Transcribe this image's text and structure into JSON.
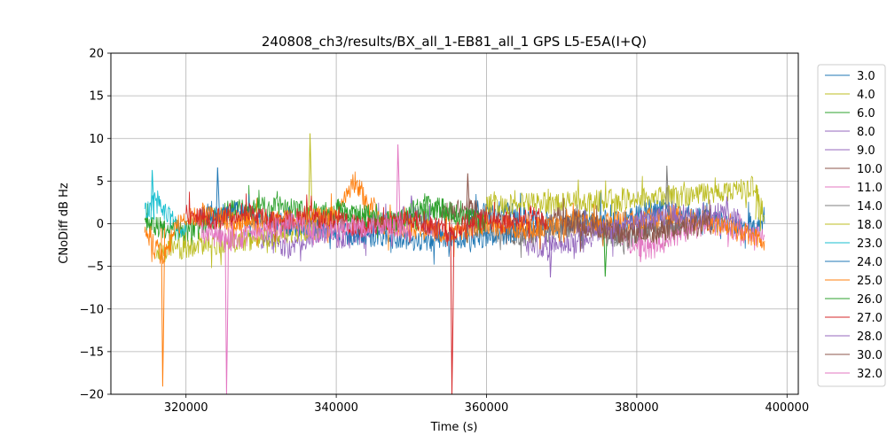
{
  "chart_data": {
    "type": "line",
    "title": "240808_ch3/results/BX_all_1-EB81_all_1 GPS L5-E5A(I+Q)",
    "xlabel": "Time (s)",
    "ylabel": "CNoDiff dB Hz",
    "xlim": [
      310000,
      401500
    ],
    "ylim": [
      -20,
      20
    ],
    "x_ticks": [
      320000,
      340000,
      360000,
      380000,
      400000
    ],
    "x_tick_labels": [
      "320000",
      "340000",
      "360000",
      "380000",
      "400000"
    ],
    "y_ticks": [
      -20,
      -15,
      -10,
      -5,
      0,
      5,
      10,
      15,
      20
    ],
    "y_tick_labels": [
      "−20",
      "−15",
      "−10",
      "−5",
      "0",
      "5",
      "10",
      "15",
      "20"
    ],
    "grid": true,
    "legend_position": "right-outside",
    "series": [
      {
        "name": "3.0",
        "color": "#1f77b4",
        "x": [
          357500,
          362000,
          366000,
          370000,
          374000,
          378000,
          382000,
          386000,
          390000,
          394000,
          397000
        ],
        "y": [
          0.8,
          1.5,
          0.5,
          -0.5,
          1,
          0,
          2,
          1,
          0.5,
          -0.5,
          0
        ],
        "spikes": []
      },
      {
        "name": "4.0",
        "color": "#bcbd22",
        "x": [
          360000,
          366000,
          372000,
          378000,
          384000,
          390000,
          395500,
          397000
        ],
        "y": [
          2.2,
          2.4,
          2.6,
          2.8,
          3.2,
          3.6,
          4.3,
          1
        ],
        "spikes": [
          [
            396000,
            4.5
          ]
        ]
      },
      {
        "name": "6.0",
        "color": "#2ca02c",
        "x": [
          314500,
          320000,
          326000,
          332000,
          338000,
          344000,
          350000,
          354000,
          356000
        ],
        "y": [
          0,
          -1,
          1.5,
          2,
          1,
          0.5,
          0,
          2,
          1
        ],
        "spikes": [
          [
            375800,
            -6.2
          ]
        ]
      },
      {
        "name": "8.0",
        "color": "#9467bd",
        "x": [
          365000,
          368000,
          371000,
          374000
        ],
        "y": [
          -2.5,
          -2.8,
          -2.4,
          -2.2
        ],
        "spikes": [
          [
            368500,
            -6.3
          ]
        ]
      },
      {
        "name": "9.0",
        "color": "#9467bd",
        "x": [
          330000,
          334000,
          338000,
          342000,
          346000,
          350000,
          354000
        ],
        "y": [
          -1.5,
          -3,
          -1,
          -2,
          0,
          1,
          -1
        ],
        "spikes": [
          [
            350000,
            3.3
          ]
        ]
      },
      {
        "name": "10.0",
        "color": "#8c564b",
        "x": [
          354000,
          358000,
          362000,
          366000,
          370000,
          374000,
          378000,
          382000,
          386000
        ],
        "y": [
          1,
          2,
          0,
          -1,
          1,
          0,
          -1,
          -1,
          0
        ],
        "spikes": [
          [
            357500,
            5.9
          ]
        ]
      },
      {
        "name": "11.0",
        "color": "#e377c2",
        "x": [
          378000,
          382000,
          386000,
          390000,
          394000,
          397000
        ],
        "y": [
          -2,
          -3,
          -1,
          0,
          -1,
          -1.5
        ],
        "spikes": [
          [
            380500,
            -4.5
          ]
        ]
      },
      {
        "name": "14.0",
        "color": "#7f7f7f",
        "x": [
          358000,
          362000,
          366000,
          370000,
          374000,
          378000,
          382000,
          386000
        ],
        "y": [
          -0.5,
          -1,
          -1.5,
          -0.5,
          0,
          -2,
          -0.5,
          0
        ],
        "spikes": [
          [
            384000,
            6.8
          ]
        ]
      },
      {
        "name": "18.0",
        "color": "#bcbd22",
        "x": [
          316000,
          322000,
          328000,
          334000,
          338000
        ],
        "y": [
          -3.5,
          -2.5,
          -2,
          -1,
          -0.5
        ],
        "spikes": [
          [
            336500,
            10.6
          ]
        ]
      },
      {
        "name": "23.0",
        "color": "#17becf",
        "x": [
          314500,
          316000,
          318000,
          320000
        ],
        "y": [
          1.5,
          2.5,
          0.5,
          -1
        ],
        "spikes": [
          [
            315500,
            6.3
          ]
        ]
      },
      {
        "name": "24.0",
        "color": "#1f77b4",
        "x": [
          322000,
          326000,
          330000,
          340000,
          350000,
          360000,
          364000
        ],
        "y": [
          1,
          1.5,
          0.5,
          -1,
          -2,
          -1.5,
          -1
        ],
        "spikes": [
          [
            324200,
            6.6
          ]
        ]
      },
      {
        "name": "25.0",
        "color": "#ff7f0e",
        "x": [
          314500,
          317000,
          319000,
          322000,
          330000,
          340000,
          342500,
          346000,
          355000,
          360000,
          365000,
          375000,
          385000,
          390000,
          394000,
          397000
        ],
        "y": [
          -1,
          -4,
          0,
          1,
          0,
          1,
          5,
          0,
          -1,
          0,
          -0.5,
          0,
          1,
          0,
          -1,
          -2
        ],
        "spikes": [
          [
            316900,
            -19.1
          ]
        ]
      },
      {
        "name": "26.0",
        "color": "#2ca02c",
        "x": [
          340000,
          344000,
          348000,
          352000,
          356000,
          360000
        ],
        "y": [
          2,
          1,
          0,
          2.5,
          1,
          0
        ],
        "spikes": []
      },
      {
        "name": "27.0",
        "color": "#d62728",
        "x": [
          320000,
          324000,
          328000,
          332000,
          336000,
          344000,
          350000,
          355500,
          358000,
          362000,
          366000,
          368000
        ],
        "y": [
          1,
          0.5,
          1.5,
          0,
          1,
          -0.5,
          0.5,
          -1,
          0.5,
          0,
          1,
          0
        ],
        "spikes": [
          [
            355400,
            -20
          ]
        ]
      },
      {
        "name": "28.0",
        "color": "#9467bd",
        "x": [
          372000,
          376000,
          380000,
          384000,
          388000,
          392000,
          394000
        ],
        "y": [
          -0.5,
          -1,
          0,
          1,
          0.5,
          1.5,
          0
        ],
        "spikes": [
          [
            392000,
            3.2
          ]
        ]
      },
      {
        "name": "30.0",
        "color": "#8c564b",
        "x": [
          370000,
          374000,
          378000,
          382000,
          386000,
          390000
        ],
        "y": [
          0,
          -0.5,
          -1,
          -1,
          -0.5,
          0
        ],
        "spikes": []
      },
      {
        "name": "32.0",
        "color": "#e377c2",
        "x": [
          322000,
          326000,
          330000,
          334000,
          338000,
          342000,
          346000,
          350000
        ],
        "y": [
          -1,
          -2,
          -1,
          0,
          -1,
          -0.5,
          0,
          -1
        ],
        "spikes": [
          [
            325400,
            -20
          ],
          [
            348200,
            9.3
          ]
        ]
      }
    ]
  }
}
